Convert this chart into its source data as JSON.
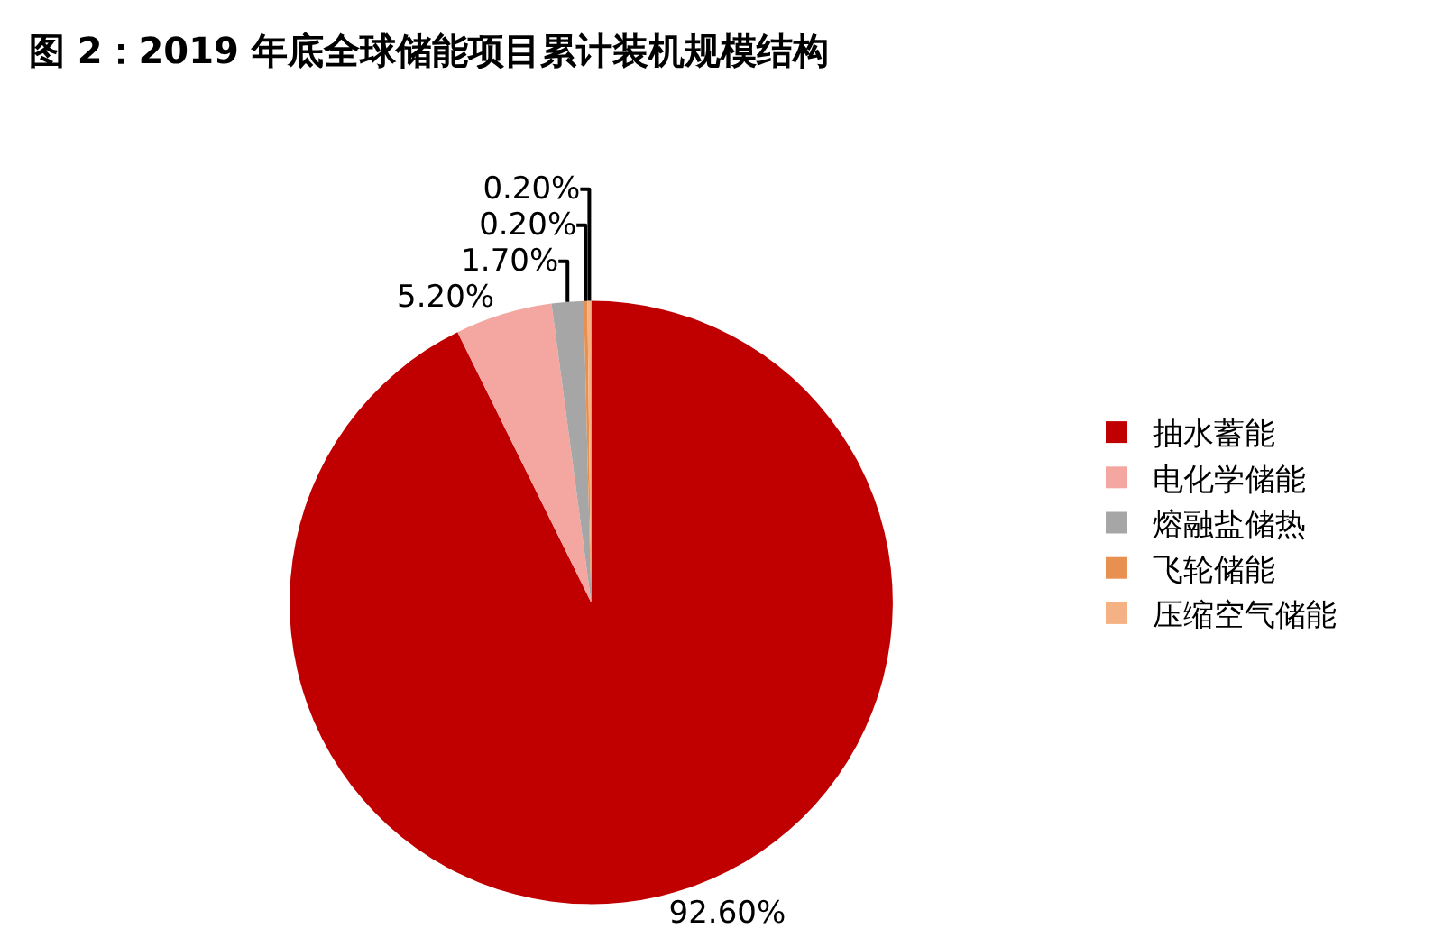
{
  "chart_data": {
    "type": "pie",
    "title": "图 2：2019 年底全球储能项目累计装机规模结构",
    "categories": [
      "抽水蓄能",
      "电化学储能",
      "熔融盐储热",
      "飞轮储能",
      "压缩空气储能"
    ],
    "values": [
      92.6,
      5.2,
      1.7,
      0.2,
      0.2
    ],
    "value_labels": [
      "92.60%",
      "5.20%",
      "1.70%",
      "0.20%",
      "0.20%"
    ],
    "colors": [
      "#c00000",
      "#f4a6a0",
      "#a6a6a6",
      "#e8904f",
      "#f4b183"
    ],
    "legend": "right"
  }
}
